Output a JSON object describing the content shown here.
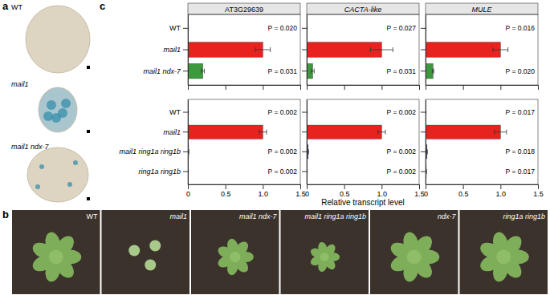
{
  "panel_a": {
    "letter": "a",
    "labels": [
      "WT",
      "mail1",
      "mail1 ndx-7"
    ]
  },
  "panel_b": {
    "letter": "b",
    "labels": [
      "WT",
      "mail1",
      "mail1 ndx-7",
      "mail1 ring1a ring1b",
      "ndx-7",
      "ring1a ring1b"
    ]
  },
  "panel_c": {
    "letter": "c",
    "x_label": "Relative transcript level"
  },
  "chart_data": [
    {
      "type": "bar",
      "orientation": "horizontal",
      "title": "AT3G29639",
      "categories": [
        "WT",
        "mail1",
        "mail1 ndx-7"
      ],
      "values": [
        0.005,
        1.0,
        0.2
      ],
      "errors": [
        0.002,
        0.1,
        0.02
      ],
      "p_values": [
        "P = 0.020",
        null,
        "P = 0.031"
      ],
      "colors": [
        "#222222",
        "#e8221f",
        "#3c9a3c"
      ],
      "xlim": [
        0,
        1.5
      ],
      "xticks": [
        0,
        0.5,
        {
          "value": 1,
          "label": "1.0"
        },
        1.5
      ],
      "tick_labels": "y"
    },
    {
      "type": "bar",
      "orientation": "horizontal",
      "title": "CACTA-like",
      "categories": [
        null,
        null,
        null
      ],
      "values": [
        0.005,
        1.0,
        0.08
      ],
      "errors": [
        0.002,
        0.15,
        0.02
      ],
      "p_values": [
        "P = 0.027",
        null,
        "P = 0.031"
      ],
      "colors": [
        "#222222",
        "#e8221f",
        "#3c9a3c"
      ],
      "xlim": [
        0,
        1.5
      ],
      "xticks": [
        0,
        0.5,
        {
          "value": 1,
          "label": "1.0"
        },
        1.5
      ],
      "tick_labels": false
    },
    {
      "type": "bar",
      "orientation": "horizontal",
      "title": "MULE",
      "categories": [
        null,
        null,
        null
      ],
      "values": [
        0.005,
        1.0,
        0.1
      ],
      "errors": [
        0.002,
        0.1,
        0.01
      ],
      "p_values": [
        "P = 0.016",
        null,
        "P = 0.020"
      ],
      "colors": [
        "#222222",
        "#e8221f",
        "#3c9a3c"
      ],
      "xlim": [
        0,
        1.5
      ],
      "xticks": [
        0,
        0.5,
        {
          "value": 1,
          "label": "1.0"
        },
        1.5
      ],
      "tick_labels": false
    },
    {
      "type": "bar",
      "orientation": "horizontal",
      "categories": [
        "WT",
        "mail1",
        "mail1 ring1a ring1b",
        "ring1a ring1b"
      ],
      "values": [
        0.005,
        1.0,
        0.01,
        0.005
      ],
      "errors": [
        0.002,
        0.05,
        0.003,
        0.002
      ],
      "p_values": [
        "P = 0.002",
        null,
        "P = 0.002",
        "P = 0.002"
      ],
      "colors": [
        "#222222",
        "#e8221f",
        "#4a3f8c",
        "#4a3f8c"
      ],
      "xlim": [
        0,
        1.5
      ],
      "xticks": [
        0,
        0.5,
        {
          "value": 1,
          "label": "1.0"
        },
        1.5
      ],
      "tick_labels": true
    },
    {
      "type": "bar",
      "orientation": "horizontal",
      "categories": [
        null,
        null,
        null,
        null
      ],
      "values": [
        0.005,
        1.0,
        0.02,
        0.005
      ],
      "errors": [
        0.002,
        0.05,
        0.005,
        0.002
      ],
      "p_values": [
        "P = 0.002",
        null,
        "P = 0.002",
        "P = 0.002"
      ],
      "colors": [
        "#222222",
        "#e8221f",
        "#4a3f8c",
        "#4a3f8c"
      ],
      "xlim": [
        0,
        1.5
      ],
      "xticks": [
        0,
        0.5,
        {
          "value": 1,
          "label": "1.0"
        },
        1.5
      ],
      "tick_labels": "x"
    },
    {
      "type": "bar",
      "orientation": "horizontal",
      "categories": [
        null,
        null,
        null,
        null
      ],
      "values": [
        0.005,
        1.0,
        0.02,
        0.01
      ],
      "errors": [
        0.002,
        0.08,
        0.005,
        0.003
      ],
      "p_values": [
        "P = 0.017",
        null,
        "P = 0.018",
        "P = 0.017"
      ],
      "colors": [
        "#222222",
        "#e8221f",
        "#4a3f8c",
        "#4a3f8c"
      ],
      "xlim": [
        0,
        1.5
      ],
      "xticks": [
        0,
        0.5,
        {
          "value": 1,
          "label": "1.0"
        },
        1.5
      ],
      "tick_labels": "x"
    }
  ]
}
